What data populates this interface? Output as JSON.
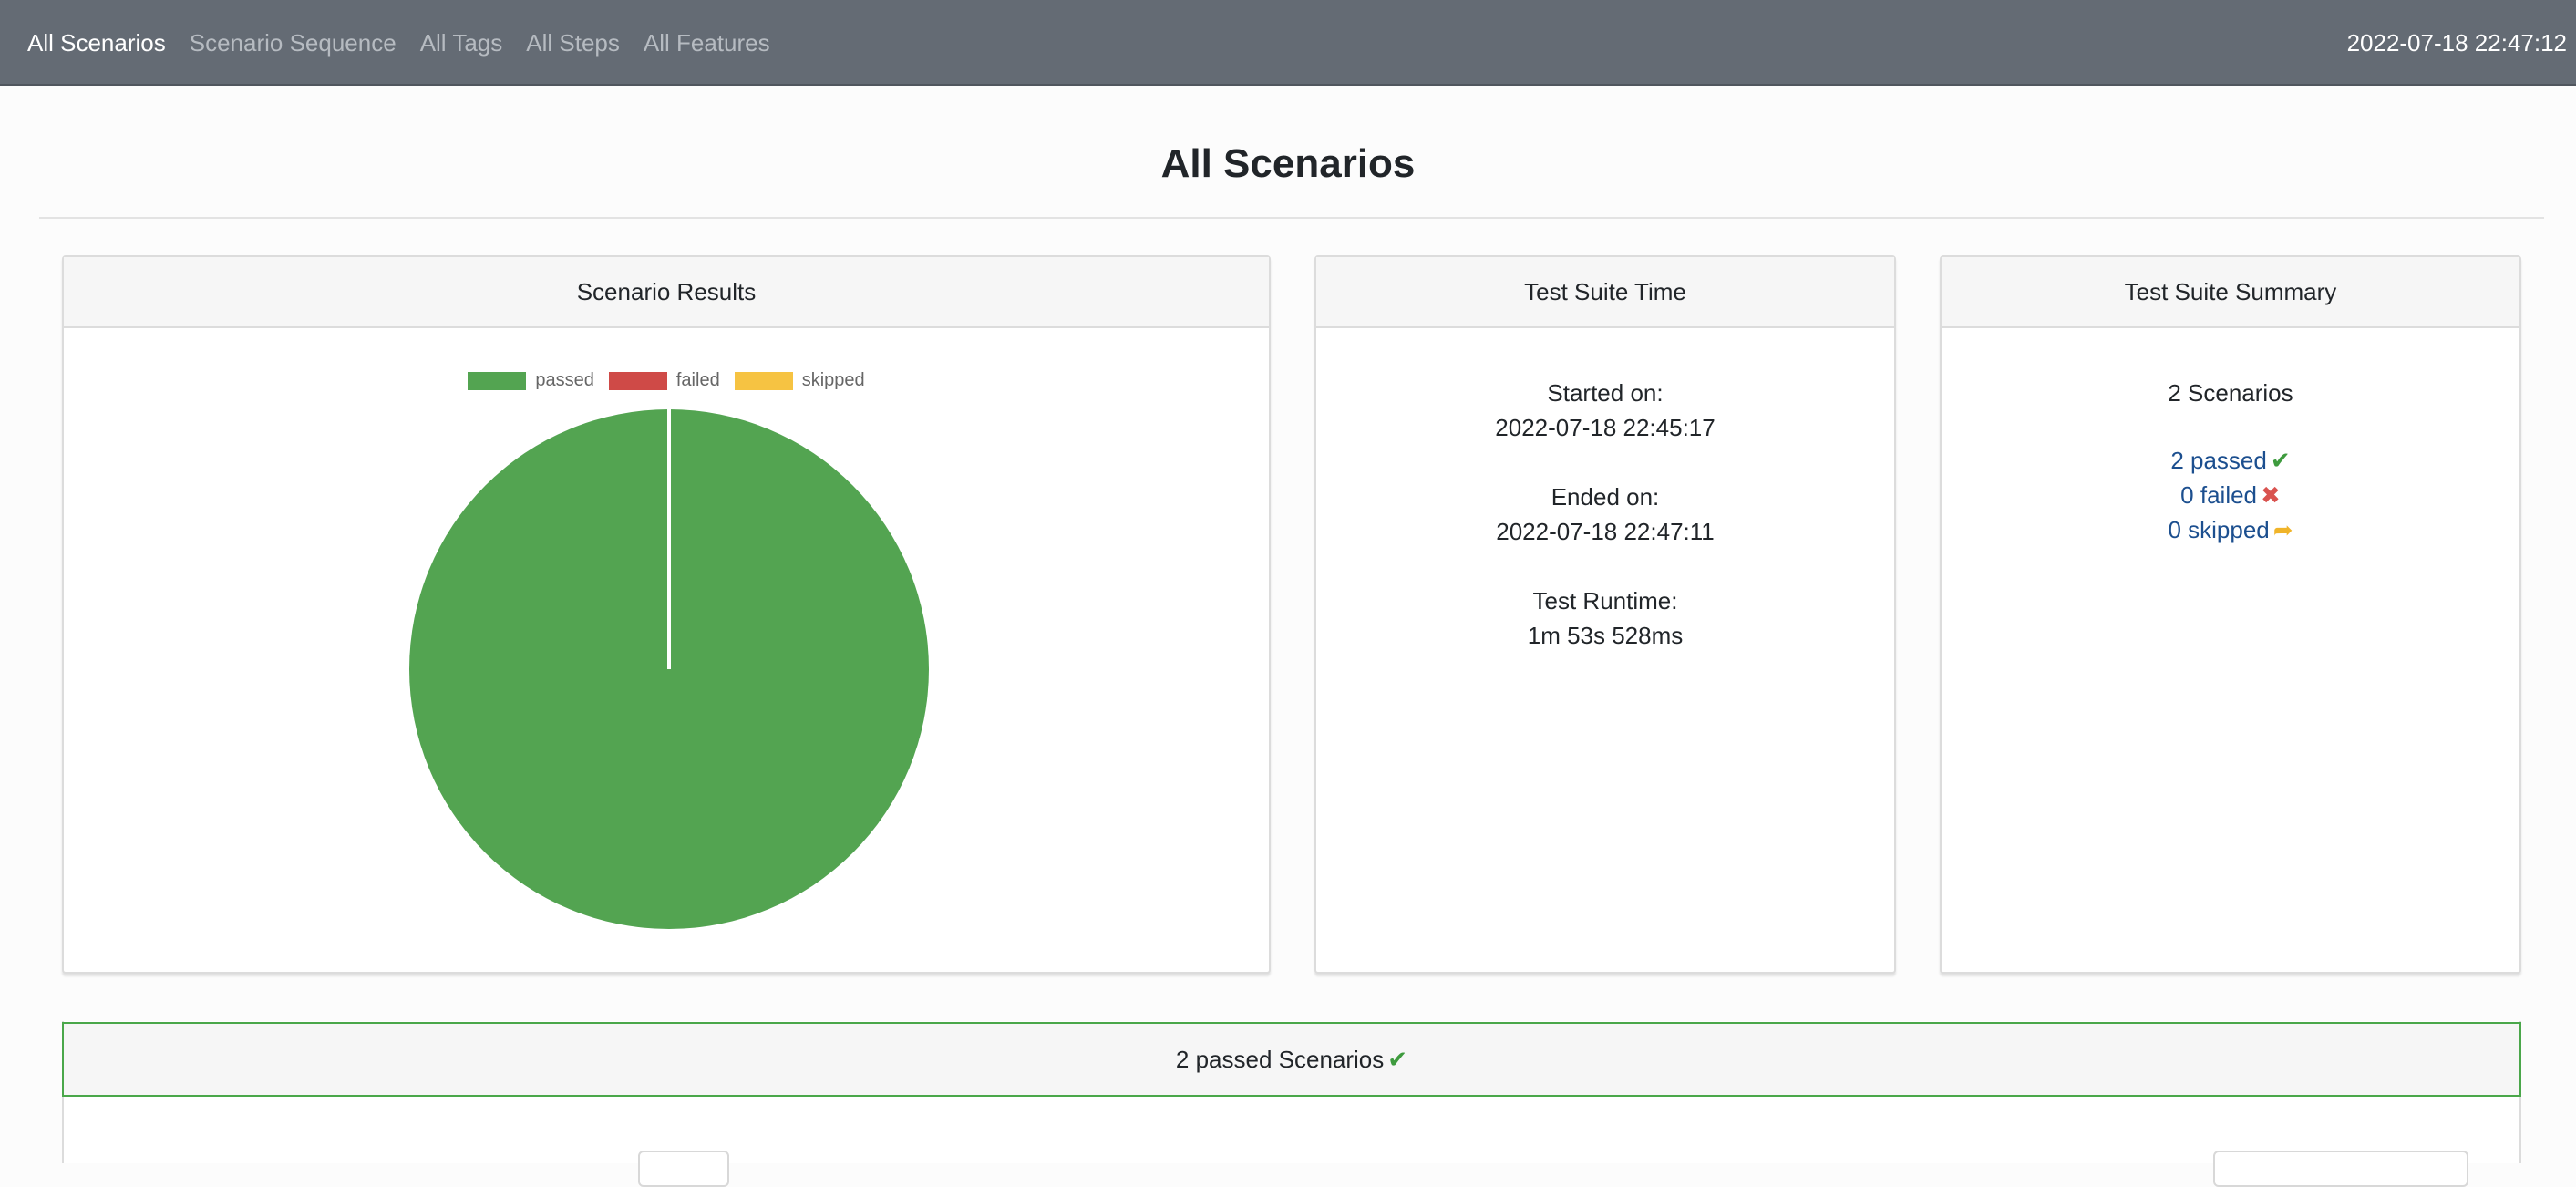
{
  "nav": {
    "links": [
      "All Scenarios",
      "Scenario Sequence",
      "All Tags",
      "All Steps",
      "All Features"
    ],
    "timestamp": "2022-07-18 22:47:12"
  },
  "page": {
    "title": "All Scenarios"
  },
  "results_card": {
    "title": "Scenario Results",
    "legend": [
      {
        "label": "passed",
        "color": "#53a451"
      },
      {
        "label": "failed",
        "color": "#cf4a47"
      },
      {
        "label": "skipped",
        "color": "#f6c342"
      }
    ]
  },
  "chart_data": {
    "type": "pie",
    "categories": [
      "passed",
      "failed",
      "skipped"
    ],
    "values": [
      2,
      0,
      0
    ],
    "colors": [
      "#53a451",
      "#cf4a47",
      "#f6c342"
    ],
    "legend_position": "top"
  },
  "time_card": {
    "title": "Test Suite Time",
    "started_label": "Started on:",
    "started_value": "2022-07-18 22:45:17",
    "ended_label": "Ended on:",
    "ended_value": "2022-07-18 22:47:11",
    "runtime_label": "Test Runtime:",
    "runtime_value": "1m 53s 528ms"
  },
  "summary_card": {
    "title": "Test Suite Summary",
    "total": "2 Scenarios",
    "passed": "2 passed",
    "failed": "0 failed",
    "skipped": "0 skipped",
    "icons": {
      "passed": "check-icon",
      "failed": "x-icon",
      "skipped": "share-arrow-icon"
    }
  },
  "passed_panel": {
    "title": "2 passed Scenarios"
  }
}
